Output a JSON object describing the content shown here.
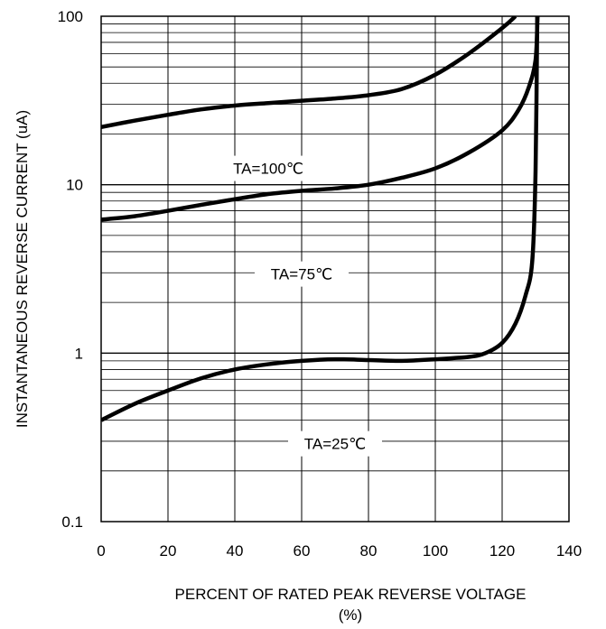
{
  "chart_data": {
    "type": "line",
    "title": "",
    "xlabel": "PERCENT OF RATED PEAK REVERSE VOLTAGE",
    "xlabel_unit": "(%)",
    "ylabel": "INSTANTANEOUS REVERSE CURRENT (uA)",
    "xlim": [
      0,
      140
    ],
    "ylim": [
      0.1,
      100
    ],
    "yscale": "log",
    "grid": true,
    "legend": "none",
    "x_ticks": [
      "0",
      "20",
      "40",
      "60",
      "80",
      "100",
      "120",
      "140"
    ],
    "y_ticks": [
      "0.1",
      "1",
      "10",
      "100"
    ],
    "colors": {
      "line": "#000000",
      "grid": "#000000",
      "background": "#ffffff"
    },
    "series": [
      {
        "label": "TA=100℃",
        "label_at": [
          50,
          12.5
        ],
        "points": [
          [
            0,
            22
          ],
          [
            10,
            24
          ],
          [
            20,
            26
          ],
          [
            30,
            28
          ],
          [
            40,
            29.5
          ],
          [
            50,
            30.5
          ],
          [
            60,
            31.5
          ],
          [
            70,
            32.5
          ],
          [
            80,
            34
          ],
          [
            90,
            37
          ],
          [
            100,
            45
          ],
          [
            110,
            60
          ],
          [
            120,
            85
          ],
          [
            124,
            100
          ]
        ]
      },
      {
        "label": "TA=75℃",
        "label_at": [
          60,
          2.95
        ],
        "points": [
          [
            0,
            6.2
          ],
          [
            10,
            6.5
          ],
          [
            20,
            7.0
          ],
          [
            30,
            7.6
          ],
          [
            40,
            8.2
          ],
          [
            50,
            8.8
          ],
          [
            60,
            9.2
          ],
          [
            70,
            9.5
          ],
          [
            80,
            10.0
          ],
          [
            90,
            11.0
          ],
          [
            100,
            12.5
          ],
          [
            110,
            15.5
          ],
          [
            120,
            21
          ],
          [
            125,
            28
          ],
          [
            128,
            38
          ],
          [
            130,
            55
          ],
          [
            130.6,
            100
          ]
        ]
      },
      {
        "label": "TA=25℃",
        "label_at": [
          70,
          0.29
        ],
        "points": [
          [
            0,
            0.4
          ],
          [
            10,
            0.5
          ],
          [
            20,
            0.6
          ],
          [
            30,
            0.71
          ],
          [
            40,
            0.8
          ],
          [
            50,
            0.86
          ],
          [
            60,
            0.9
          ],
          [
            70,
            0.92
          ],
          [
            80,
            0.91
          ],
          [
            90,
            0.9
          ],
          [
            100,
            0.92
          ],
          [
            110,
            0.95
          ],
          [
            115,
            1.0
          ],
          [
            120,
            1.15
          ],
          [
            124,
            1.5
          ],
          [
            127,
            2.2
          ],
          [
            129,
            3.5
          ],
          [
            130,
            12
          ],
          [
            130.5,
            100
          ]
        ]
      }
    ]
  }
}
